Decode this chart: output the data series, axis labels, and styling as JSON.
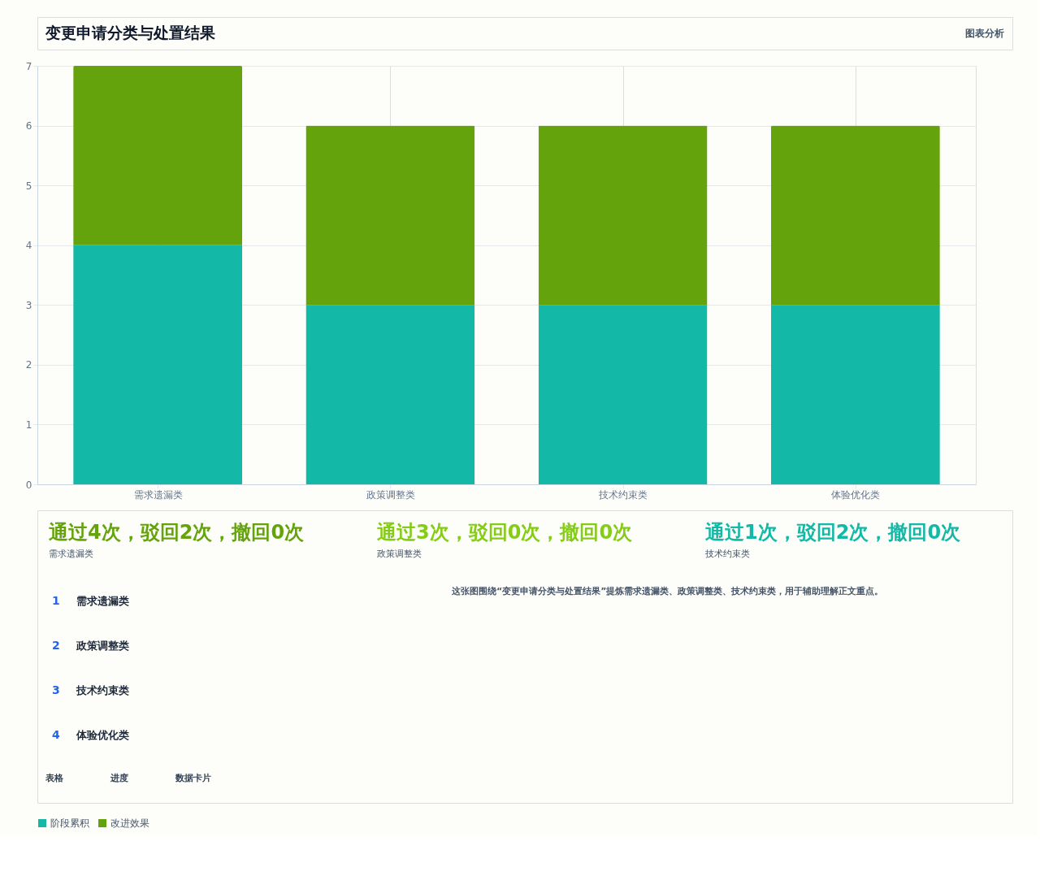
{
  "chart_data": {
    "type": "bar",
    "title": "变更申请分类与处置结果",
    "stacked": true,
    "categories": [
      "需求遗漏类",
      "政策调整类",
      "技术约束类",
      "体验优化类"
    ],
    "series": [
      {
        "name": "阶段累积",
        "color": "#14b8a6",
        "values": [
          4,
          3,
          3,
          3
        ]
      },
      {
        "name": "改进效果",
        "color": "#65a30d",
        "values": [
          3,
          3,
          3,
          3
        ]
      }
    ],
    "ylim": [
      0,
      7
    ],
    "yticks": [
      0,
      1,
      2,
      3,
      4,
      5,
      6,
      7
    ],
    "grid": true,
    "legend": "bottom",
    "annotations": [
      "图表分析",
      "通过4次，驳回2次，撤回0次",
      "需求遗漏类",
      "通过3次，驳回0次，撤回0次",
      "政策调整类",
      "通过1次，驳回2次，撤回0次",
      "技术约束类",
      "1",
      "需求遗漏类",
      "2",
      "政策调整类",
      "3",
      "技术约束类",
      "4",
      "体验优化类",
      "这张图围绕“变更申请分类与处置结果”提炼需求遗漏类、政策调整类、技术约束类，用于辅助理解正文重点。",
      "表格",
      "进度",
      "数据卡片"
    ]
  }
}
